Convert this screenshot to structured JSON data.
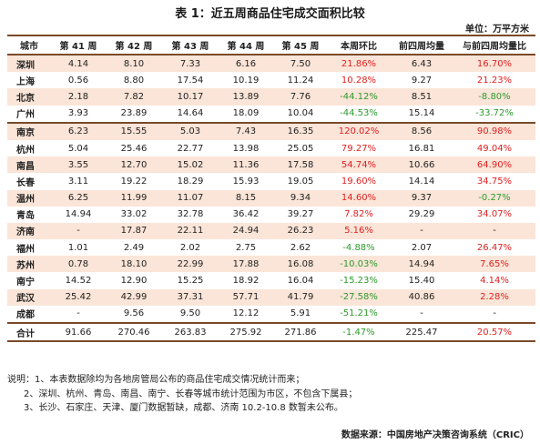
{
  "title": "表 1：近五周商品住宅成交面积比较",
  "unit": "单位：万平方米",
  "headers": [
    "城市",
    "第 41 周",
    "第 42 周",
    "第 43 周",
    "第 44 周",
    "第 45 周",
    "本周环比",
    "前四周均量",
    "与前四周均量比"
  ],
  "rows": [
    {
      "city": "深圳",
      "w41": "4.14",
      "w42": "8.10",
      "w43": "7.33",
      "w44": "6.16",
      "w45": "7.50",
      "hb": "21.86%",
      "avg": "6.43",
      "vs": "16.70%"
    },
    {
      "city": "上海",
      "w41": "0.56",
      "w42": "8.80",
      "w43": "17.54",
      "w44": "10.19",
      "w45": "11.24",
      "hb": "10.28%",
      "avg": "9.27",
      "vs": "21.23%"
    },
    {
      "city": "北京",
      "w41": "2.18",
      "w42": "7.82",
      "w43": "10.17",
      "w44": "13.89",
      "w45": "7.76",
      "hb": "-44.12%",
      "avg": "8.51",
      "vs": "-8.80%"
    },
    {
      "city": "广州",
      "w41": "3.93",
      "w42": "23.89",
      "w43": "14.64",
      "w44": "18.09",
      "w45": "10.04",
      "hb": "-44.53%",
      "avg": "15.14",
      "vs": "-33.72%"
    },
    {
      "city": "南京",
      "w41": "6.23",
      "w42": "15.55",
      "w43": "5.03",
      "w44": "7.43",
      "w45": "16.35",
      "hb": "120.02%",
      "avg": "8.56",
      "vs": "90.98%"
    },
    {
      "city": "杭州",
      "w41": "5.04",
      "w42": "25.46",
      "w43": "22.77",
      "w44": "13.98",
      "w45": "25.05",
      "hb": "79.27%",
      "avg": "16.81",
      "vs": "49.04%"
    },
    {
      "city": "南昌",
      "w41": "3.55",
      "w42": "12.70",
      "w43": "15.02",
      "w44": "11.36",
      "w45": "17.58",
      "hb": "54.74%",
      "avg": "10.66",
      "vs": "64.90%"
    },
    {
      "city": "长春",
      "w41": "3.11",
      "w42": "19.22",
      "w43": "18.29",
      "w44": "15.93",
      "w45": "19.05",
      "hb": "19.60%",
      "avg": "14.14",
      "vs": "34.75%"
    },
    {
      "city": "温州",
      "w41": "6.25",
      "w42": "11.99",
      "w43": "11.07",
      "w44": "8.15",
      "w45": "9.34",
      "hb": "14.60%",
      "avg": "9.37",
      "vs": "-0.27%"
    },
    {
      "city": "青岛",
      "w41": "14.94",
      "w42": "33.02",
      "w43": "32.78",
      "w44": "36.42",
      "w45": "39.27",
      "hb": "7.82%",
      "avg": "29.29",
      "vs": "34.07%"
    },
    {
      "city": "济南",
      "w41": "-",
      "w42": "17.87",
      "w43": "22.11",
      "w44": "24.94",
      "w45": "26.23",
      "hb": "5.16%",
      "avg": "-",
      "vs": "-"
    },
    {
      "city": "福州",
      "w41": "1.01",
      "w42": "2.49",
      "w43": "2.02",
      "w44": "2.75",
      "w45": "2.62",
      "hb": "-4.88%",
      "avg": "2.07",
      "vs": "26.47%"
    },
    {
      "city": "苏州",
      "w41": "0.78",
      "w42": "18.10",
      "w43": "22.99",
      "w44": "17.88",
      "w45": "16.08",
      "hb": "-10.03%",
      "avg": "14.94",
      "vs": "7.65%"
    },
    {
      "city": "南宁",
      "w41": "14.52",
      "w42": "12.90",
      "w43": "15.25",
      "w44": "18.92",
      "w45": "16.04",
      "hb": "-15.23%",
      "avg": "15.40",
      "vs": "4.14%"
    },
    {
      "city": "武汉",
      "w41": "25.42",
      "w42": "42.99",
      "w43": "37.31",
      "w44": "57.71",
      "w45": "41.79",
      "hb": "-27.58%",
      "avg": "40.86",
      "vs": "2.28%"
    },
    {
      "city": "成都",
      "w41": "-",
      "w42": "9.56",
      "w43": "9.50",
      "w44": "12.12",
      "w45": "5.91",
      "hb": "-51.21%",
      "avg": "-",
      "vs": "-"
    },
    {
      "city": "合计",
      "w41": "91.66",
      "w42": "270.46",
      "w43": "263.83",
      "w44": "275.92",
      "w45": "271.86",
      "hb": "-1.47%",
      "avg": "225.47",
      "vs": "20.57%"
    }
  ],
  "notes": [
    "说明：1、本表数据除均为各地房管局公布的商品住宅成交情况统计而来；",
    "2、深圳、杭州、青岛、南昌、南宁、长春等城市统计范围为市区，不包含下属县；",
    "3、长沙、石家庄、天津、厦门数据暂缺，成都、济南 10.2-10.8 数暂未公布。"
  ],
  "source": "数据来源：中国房地产决策咨询系统（CRIC）",
  "colors": {
    "positive": "#e02020",
    "negative": "#2d9a2d",
    "stripe": "#fbe5d8",
    "rule": "#7a4a2a"
  }
}
